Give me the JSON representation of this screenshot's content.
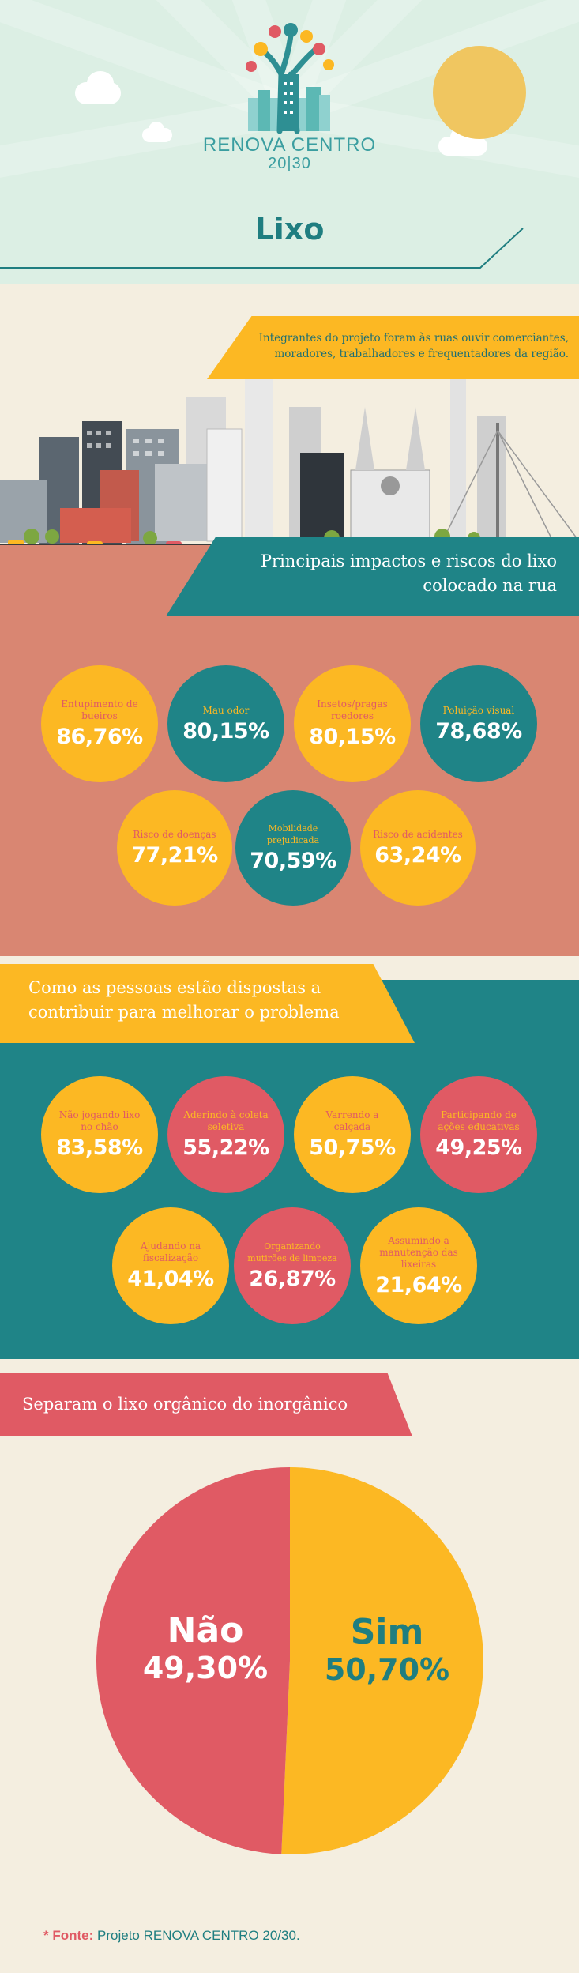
{
  "logo": {
    "line1": "RENOVA CENTRO",
    "line2": "20|30"
  },
  "title": "Lixo",
  "intro": "Integrantes do projeto foram às ruas ouvir comerciantes, moradores, trabalhadores e frequentadores da região.",
  "colors": {
    "yellow": "#fcb823",
    "teal": "#1f8487",
    "coral": "#e05a64",
    "salmon": "#d98672",
    "cream": "#f4eee0"
  },
  "impacts": {
    "heading_line1": "Principais impactos e riscos do lixo",
    "heading_line2": "colocado na rua",
    "items": [
      {
        "label": "Entupimento de bueiros",
        "value": "86,76%"
      },
      {
        "label": "Mau odor",
        "value": "80,15%"
      },
      {
        "label": "Insetos/pragas roedores",
        "value": "80,15%"
      },
      {
        "label": "Poluição visual",
        "value": "78,68%"
      },
      {
        "label": "Risco de doenças",
        "value": "77,21%"
      },
      {
        "label": "Mobilidade prejudicada",
        "value": "70,59%"
      },
      {
        "label": "Risco de acidentes",
        "value": "63,24%"
      }
    ]
  },
  "contribute": {
    "heading_line1": "Como as pessoas estão dispostas a",
    "heading_line2": "contribuir para melhorar o problema",
    "items": [
      {
        "label": "Não jogando lixo no chão",
        "value": "83,58%"
      },
      {
        "label": "Aderindo à coleta seletiva",
        "value": "55,22%"
      },
      {
        "label": "Varrendo a calçada",
        "value": "50,75%"
      },
      {
        "label": "Participando de ações educativas",
        "value": "49,25%"
      },
      {
        "label": "Ajudando na fiscalização",
        "value": "41,04%"
      },
      {
        "label": "Organizando mutirões de limpeza",
        "value": "26,87%"
      },
      {
        "label": "Assumindo a manutenção das lixeiras",
        "value": "21,64%"
      }
    ]
  },
  "separation": {
    "heading": "Separam o lixo orgânico do inorgânico",
    "no_label": "Não",
    "no_value": "49,30%",
    "yes_label": "Sim",
    "yes_value": "50,70%"
  },
  "chart_data": {
    "type": "pie",
    "categories": [
      "Não",
      "Sim"
    ],
    "values": [
      49.3,
      50.7
    ]
  },
  "source": {
    "prefix": "* Fonte:",
    "text": " Projeto RENOVA CENTRO 20/30."
  }
}
